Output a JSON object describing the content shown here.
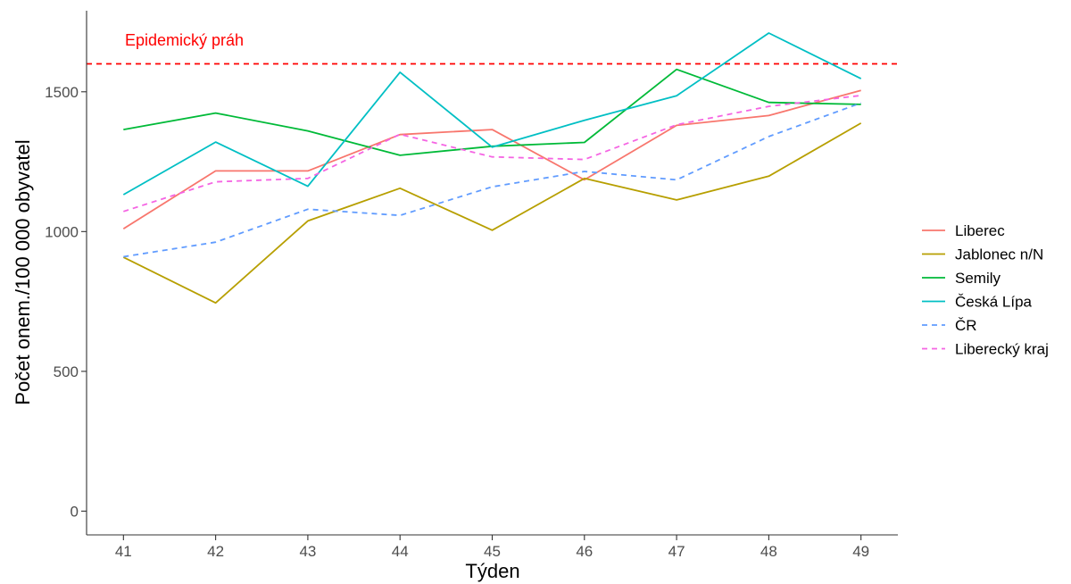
{
  "chart_data": {
    "type": "line",
    "xlabel": "Týden",
    "ylabel": "Počet onem./100 000 obyvatel",
    "x": [
      41,
      42,
      43,
      44,
      45,
      46,
      47,
      48,
      49
    ],
    "x_tick_labels": [
      "41",
      "42",
      "43",
      "44",
      "45",
      "46",
      "47",
      "48",
      "49"
    ],
    "y_ticks": [
      0,
      500,
      1000,
      1500
    ],
    "y_tick_labels": [
      "0",
      "500",
      "1000",
      "1500"
    ],
    "xlim": [
      40.6,
      49.4
    ],
    "ylim": [
      -85,
      1790
    ],
    "grid": false,
    "legend_position": "right",
    "threshold": {
      "value": 1600,
      "label": "Epidemický práh",
      "color": "#ff0000",
      "style": "dashed"
    },
    "series": [
      {
        "name": "Liberec",
        "color": "#f8766d",
        "dash": "solid",
        "values": [
          1010,
          1217,
          1217,
          1347,
          1365,
          1185,
          1380,
          1415,
          1505
        ]
      },
      {
        "name": "Jablonec n/N",
        "color": "#b79f00",
        "dash": "solid",
        "values": [
          908,
          745,
          1038,
          1155,
          1005,
          1190,
          1113,
          1198,
          1388
        ]
      },
      {
        "name": "Semily",
        "color": "#00ba38",
        "dash": "solid",
        "values": [
          1365,
          1424,
          1360,
          1273,
          1305,
          1319,
          1580,
          1462,
          1455
        ]
      },
      {
        "name": "Česká Lípa",
        "color": "#00bfc4",
        "dash": "solid",
        "values": [
          1132,
          1320,
          1162,
          1570,
          1302,
          1398,
          1486,
          1710,
          1547
        ]
      },
      {
        "name": "ČR",
        "color": "#619cff",
        "dash": "dashed",
        "values": [
          910,
          962,
          1080,
          1058,
          1160,
          1215,
          1185,
          1340,
          1460
        ]
      },
      {
        "name": "Liberecký kraj",
        "color": "#f564e3",
        "dash": "dashed",
        "values": [
          1072,
          1178,
          1190,
          1348,
          1267,
          1258,
          1382,
          1448,
          1487
        ]
      }
    ]
  }
}
